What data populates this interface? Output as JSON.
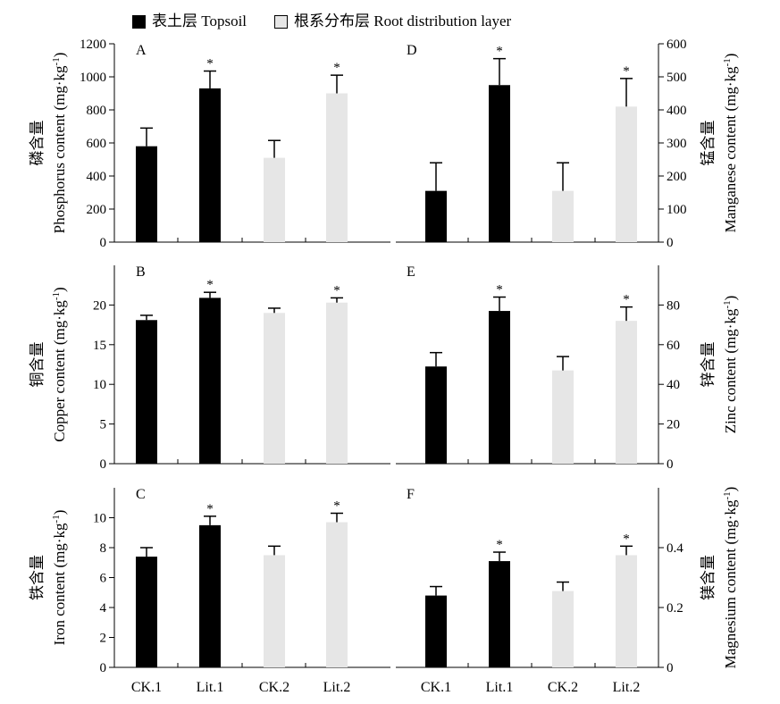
{
  "legend": {
    "topsoil_label": "表土层 Topsoil",
    "root_label": "根系分布层 Root distribution layer"
  },
  "colors": {
    "topsoil": "#000000",
    "root": "#e6e6e6",
    "axis": "#000000"
  },
  "chart_data": [
    {
      "type": "bar",
      "panel": "A",
      "ylabel_cn": "磷含量",
      "ylabel_en": "Phosphorus content (mg·kg",
      "ylabel_sup": "-1",
      "ylabel_close": ")",
      "ylim": [
        0,
        1200
      ],
      "yticks": [
        0,
        200,
        400,
        600,
        800,
        1000,
        1200
      ],
      "categories": [
        "CK.1",
        "Lit.1",
        "CK.2",
        "Lit.2"
      ],
      "series": [
        {
          "values": [
            580,
            930,
            510,
            900
          ],
          "errors": [
            110,
            105,
            105,
            110
          ]
        }
      ],
      "significance": [
        "",
        "*",
        "",
        "*"
      ],
      "axis_side": "left"
    },
    {
      "type": "bar",
      "panel": "B",
      "ylabel_cn": "铜含量",
      "ylabel_en": "Copper content (mg·kg",
      "ylabel_sup": "-1",
      "ylabel_close": ")",
      "ylim": [
        0,
        25
      ],
      "yticks": [
        0,
        5,
        10,
        15,
        20
      ],
      "categories": [
        "CK.1",
        "Lit.1",
        "CK.2",
        "Lit.2"
      ],
      "series": [
        {
          "values": [
            18.1,
            20.9,
            19.0,
            20.3
          ],
          "errors": [
            0.6,
            0.7,
            0.6,
            0.6
          ]
        }
      ],
      "significance": [
        "",
        "*",
        "",
        "*"
      ],
      "axis_side": "left"
    },
    {
      "type": "bar",
      "panel": "C",
      "ylabel_cn": "铁含量",
      "ylabel_en": "Iron content (mg·kg",
      "ylabel_sup": "-1",
      "ylabel_close": ")",
      "ylim": [
        0,
        12
      ],
      "yticks": [
        0,
        2,
        4,
        6,
        8,
        10
      ],
      "categories": [
        "CK.1",
        "Lit.1",
        "CK.2",
        "Lit.2"
      ],
      "series": [
        {
          "values": [
            7.4,
            9.5,
            7.5,
            9.7
          ],
          "errors": [
            0.6,
            0.6,
            0.6,
            0.6
          ]
        }
      ],
      "significance": [
        "",
        "*",
        "",
        "*"
      ],
      "axis_side": "left"
    },
    {
      "type": "bar",
      "panel": "D",
      "ylabel_cn": "锰含量",
      "ylabel_en": "Manganese content (mg·kg",
      "ylabel_sup": "-1",
      "ylabel_close": ")",
      "ylim": [
        0,
        600
      ],
      "yticks": [
        0,
        100,
        200,
        300,
        400,
        500,
        600
      ],
      "categories": [
        "CK.1",
        "Lit.1",
        "CK.2",
        "Lit.2"
      ],
      "series": [
        {
          "values": [
            155,
            475,
            155,
            410
          ],
          "errors": [
            85,
            80,
            85,
            85
          ]
        }
      ],
      "significance": [
        "",
        "*",
        "",
        "*"
      ],
      "axis_side": "right"
    },
    {
      "type": "bar",
      "panel": "E",
      "ylabel_cn": "锌含量",
      "ylabel_en": "Zinc content (mg·kg",
      "ylabel_sup": "-1",
      "ylabel_close": ")",
      "ylim": [
        0,
        100
      ],
      "yticks": [
        0,
        20,
        40,
        60,
        80
      ],
      "categories": [
        "CK.1",
        "Lit.1",
        "CK.2",
        "Lit.2"
      ],
      "series": [
        {
          "values": [
            49,
            77,
            47,
            72
          ],
          "errors": [
            7,
            7,
            7,
            7
          ]
        }
      ],
      "significance": [
        "",
        "*",
        "",
        "*"
      ],
      "axis_side": "right"
    },
    {
      "type": "bar",
      "panel": "F",
      "ylabel_cn": "镁含量",
      "ylabel_en": "Magnesium content (mg·kg",
      "ylabel_sup": "-1",
      "ylabel_close": ")",
      "ylim": [
        0,
        0.6
      ],
      "yticks": [
        0,
        0.2,
        0.4
      ],
      "categories": [
        "CK.1",
        "Lit.1",
        "CK.2",
        "Lit.2"
      ],
      "series": [
        {
          "values": [
            0.24,
            0.355,
            0.255,
            0.375
          ],
          "errors": [
            0.03,
            0.03,
            0.03,
            0.03
          ]
        }
      ],
      "significance": [
        "",
        "*",
        "",
        "*"
      ],
      "axis_side": "right"
    }
  ]
}
